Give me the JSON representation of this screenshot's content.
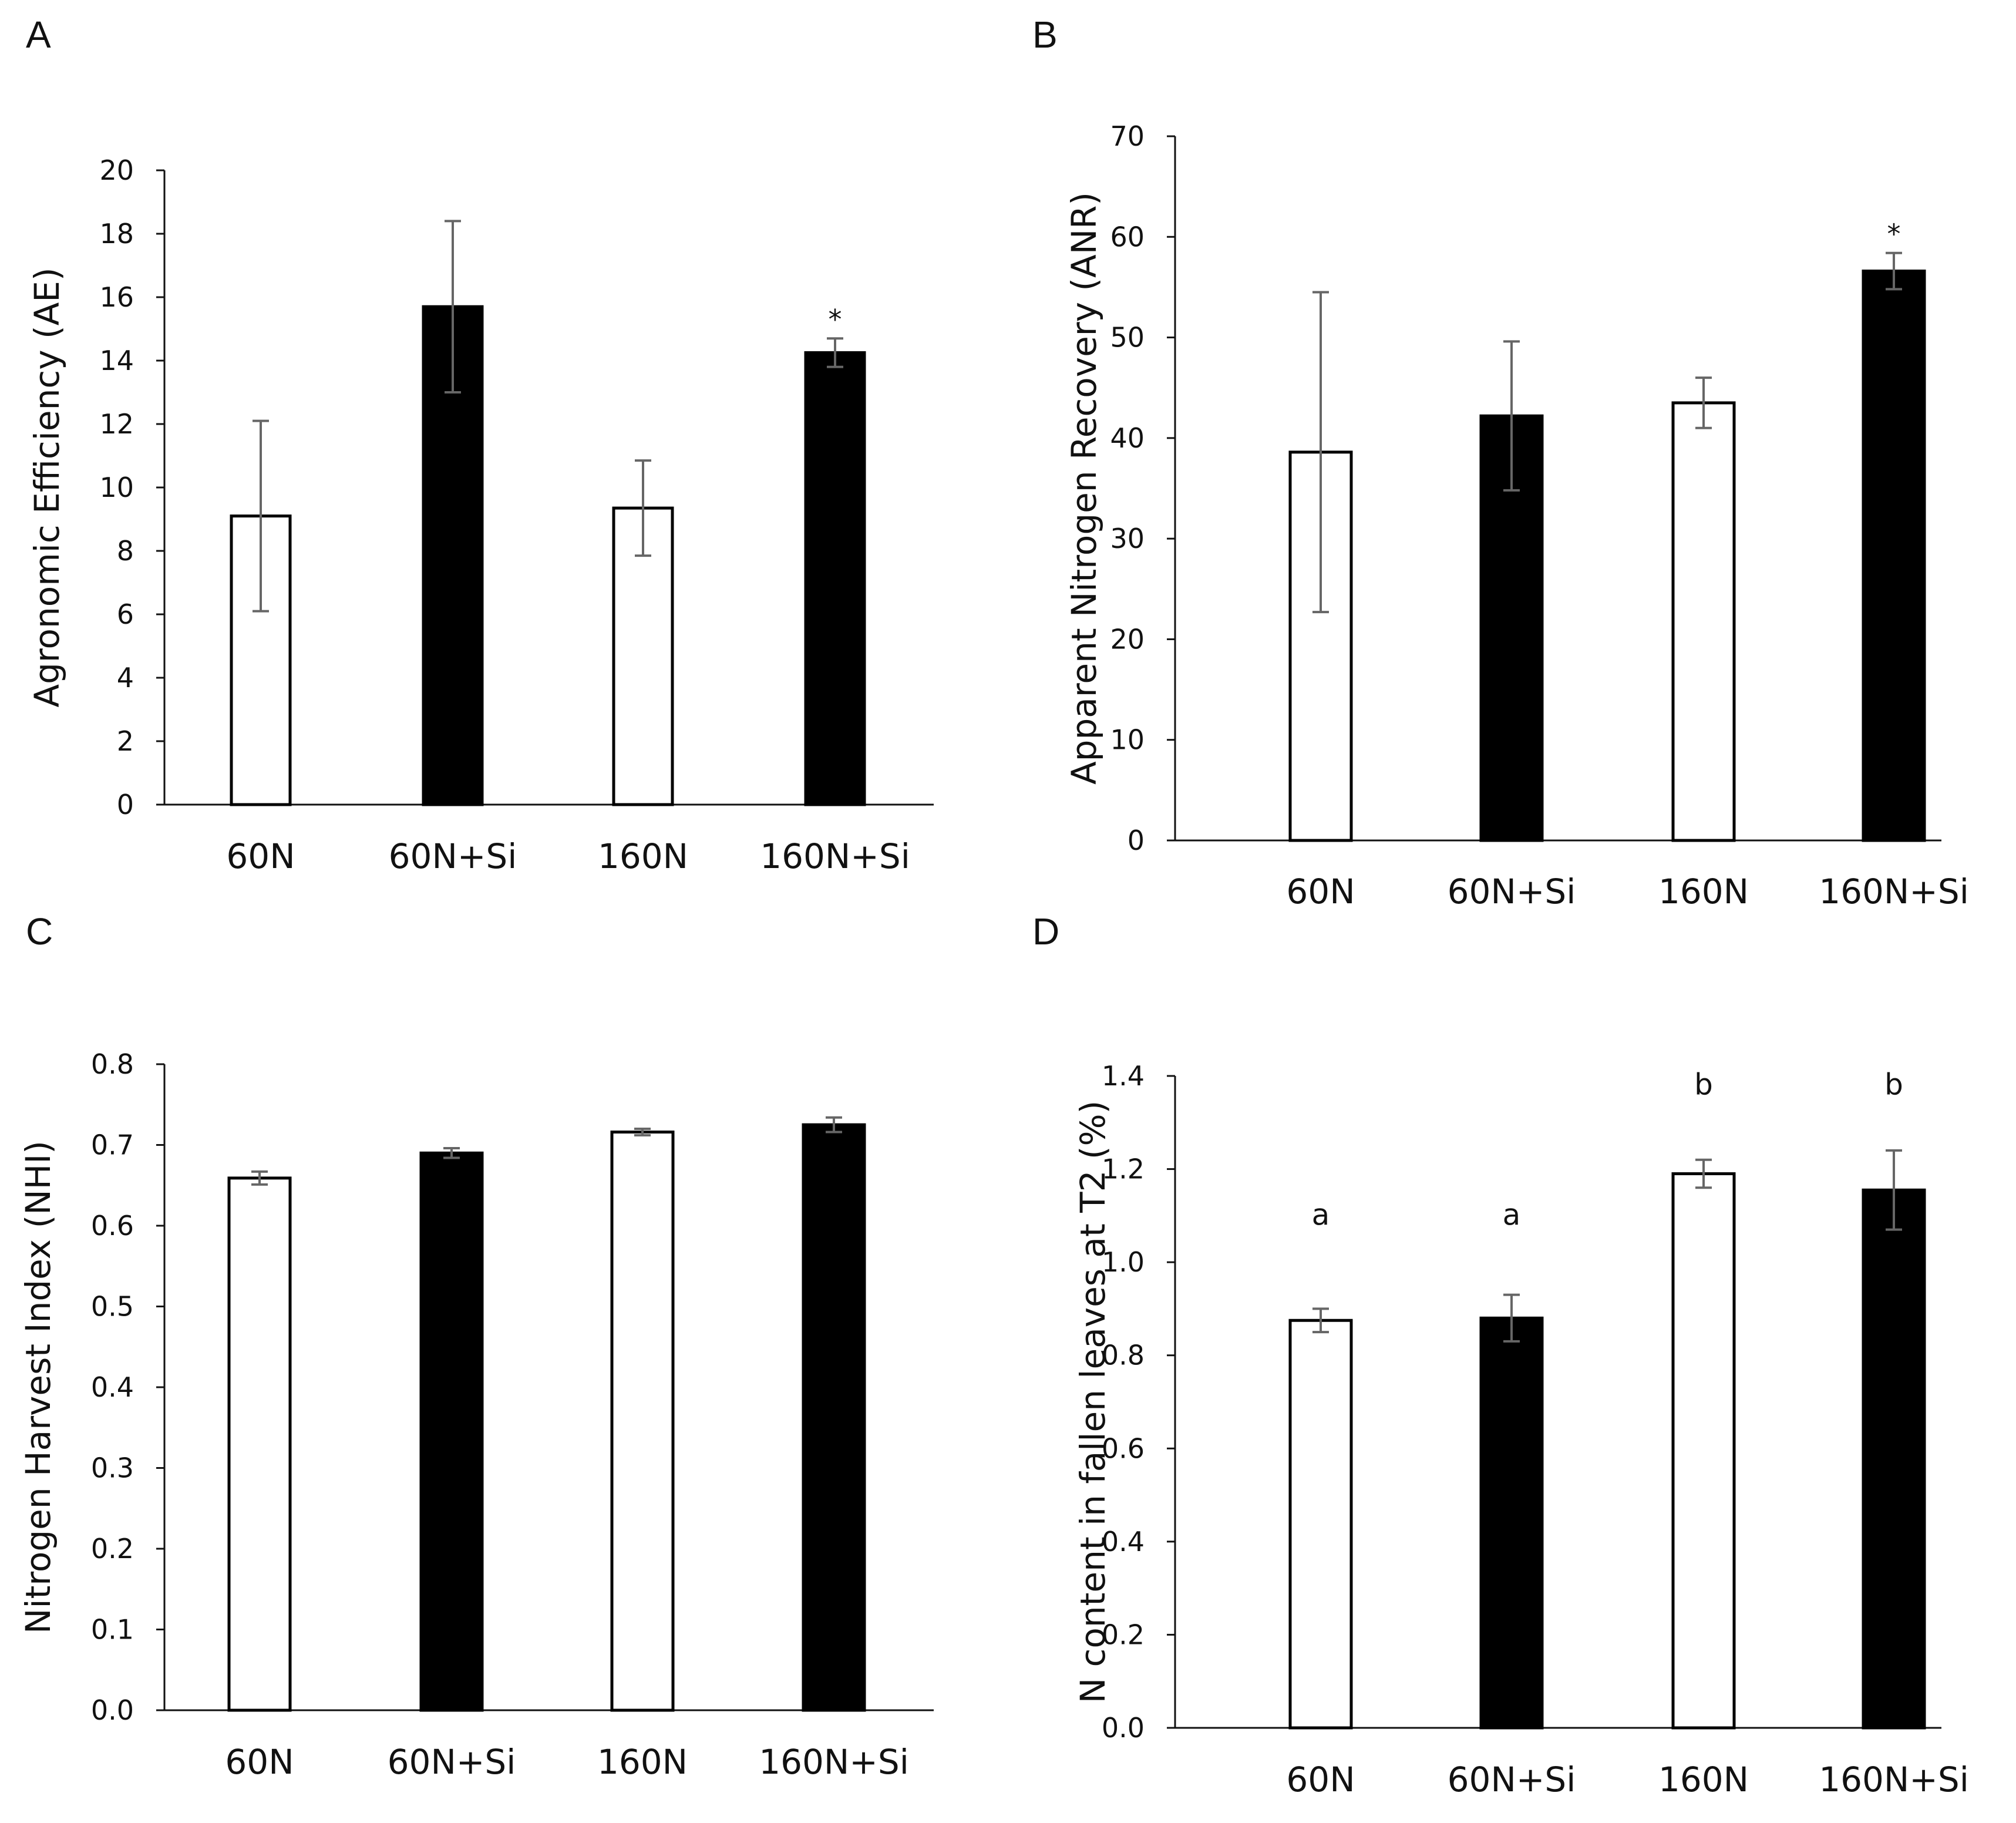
{
  "chart_data": [
    {
      "panel": "A",
      "type": "bar",
      "categories": [
        "60N",
        "60N+Si",
        "160N",
        "160N+Si"
      ],
      "values": [
        9.1,
        15.7,
        9.35,
        14.25
      ],
      "errors": [
        3.0,
        2.7,
        1.5,
        0.45
      ],
      "bar_fills": [
        "white",
        "black",
        "white",
        "black"
      ],
      "annotations": [
        "",
        "",
        "",
        "*"
      ],
      "ylabel": "Agronomic Efficiency (AE)",
      "xlabel": "",
      "ylim": [
        0,
        20
      ],
      "yticks": [
        0,
        2,
        4,
        6,
        8,
        10,
        12,
        14,
        16,
        18,
        20
      ],
      "ytick_labels": [
        "0",
        "2",
        "4",
        "6",
        "8",
        "10",
        "12",
        "14",
        "16",
        "18",
        "20"
      ],
      "grid": false
    },
    {
      "panel": "B",
      "type": "bar",
      "categories": [
        "60N",
        "60N+Si",
        "160N",
        "160N+Si"
      ],
      "values": [
        38.6,
        42.2,
        43.5,
        56.6
      ],
      "errors": [
        15.9,
        7.4,
        2.5,
        1.8
      ],
      "bar_fills": [
        "white",
        "black",
        "white",
        "black"
      ],
      "annotations": [
        "",
        "",
        "",
        "*"
      ],
      "ylabel": "Apparent Nitrogen Recovery (ANR)",
      "xlabel": "",
      "ylim": [
        0,
        70
      ],
      "yticks": [
        0,
        10,
        20,
        30,
        40,
        50,
        60,
        70
      ],
      "ytick_labels": [
        "0",
        "10",
        "20",
        "30",
        "40",
        "50",
        "60",
        "70"
      ],
      "grid": false
    },
    {
      "panel": "C",
      "type": "bar",
      "categories": [
        "60N",
        "60N+Si",
        "160N",
        "160N+Si"
      ],
      "values": [
        0.659,
        0.69,
        0.716,
        0.725
      ],
      "errors": [
        0.008,
        0.006,
        0.004,
        0.009
      ],
      "bar_fills": [
        "white",
        "black",
        "white",
        "black"
      ],
      "annotations": [
        "",
        "",
        "",
        ""
      ],
      "ylabel": "Nitrogen Harvest Index (NHI)",
      "xlabel": "",
      "ylim": [
        0,
        0.8
      ],
      "yticks": [
        0,
        0.1,
        0.2,
        0.3,
        0.4,
        0.5,
        0.6,
        0.7,
        0.8
      ],
      "ytick_labels": [
        "0.0",
        "0.1",
        "0.2",
        "0.3",
        "0.4",
        "0.5",
        "0.6",
        "0.7",
        "0.8"
      ],
      "grid": false
    },
    {
      "panel": "D",
      "type": "bar",
      "categories": [
        "60N",
        "60N+Si",
        "160N",
        "160N+Si"
      ],
      "values": [
        0.875,
        0.88,
        1.19,
        1.155
      ],
      "errors": [
        0.025,
        0.05,
        0.03,
        0.085
      ],
      "bar_fills": [
        "white",
        "black",
        "white",
        "black"
      ],
      "annotations": [
        "a",
        "a",
        "b",
        "b"
      ],
      "ylabel": "N content in fallen leaves at T2 (%)",
      "xlabel": "",
      "ylim": [
        0,
        1.4
      ],
      "yticks": [
        0,
        0.2,
        0.4,
        0.6,
        0.8,
        1.0,
        1.2,
        1.4
      ],
      "ytick_labels": [
        "0.0",
        "0.2",
        "0.4",
        "0.6",
        "0.8",
        "1.0",
        "1.2",
        "1.4"
      ],
      "grid": false
    }
  ]
}
